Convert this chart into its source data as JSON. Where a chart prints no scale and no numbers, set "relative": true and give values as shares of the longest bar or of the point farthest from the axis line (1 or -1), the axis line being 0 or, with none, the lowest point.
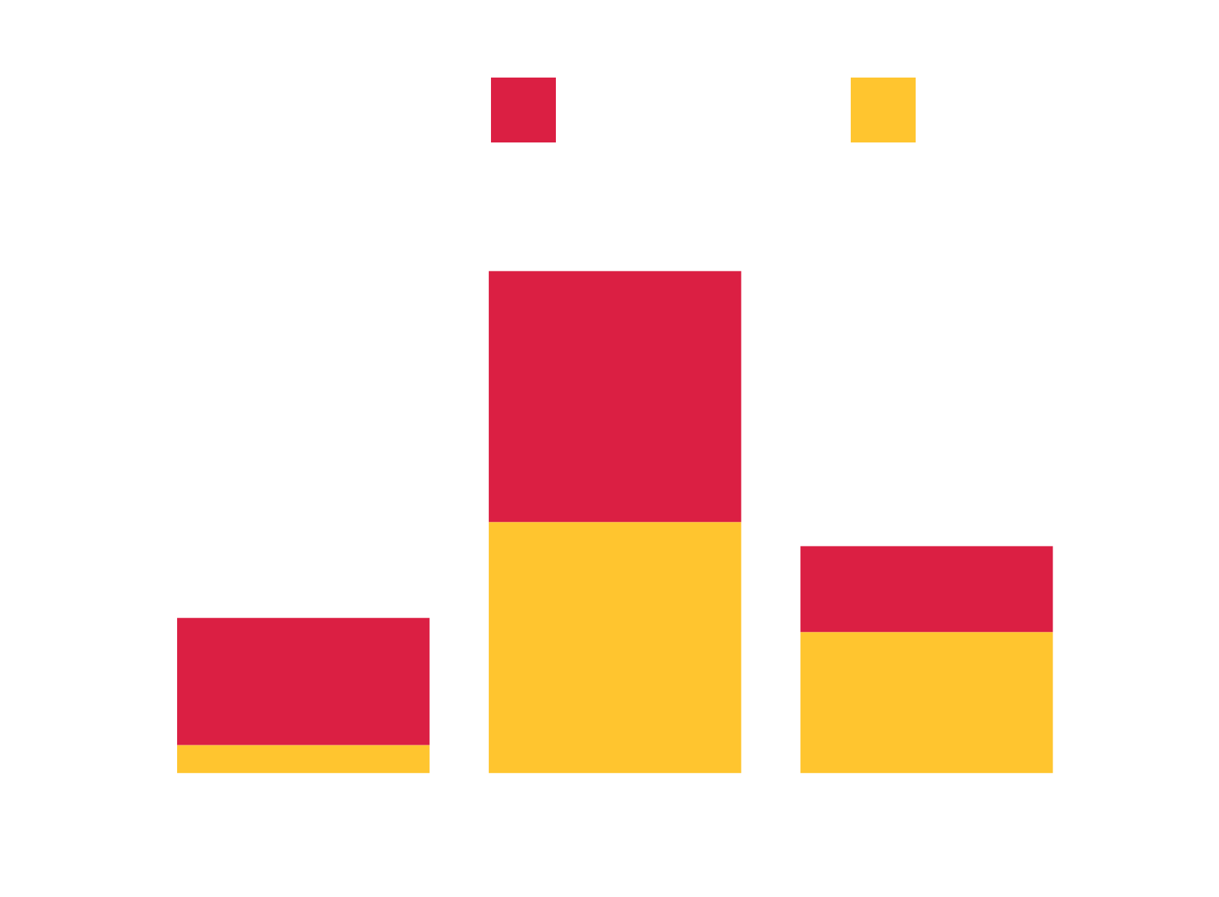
{
  "chart_data": {
    "type": "bar",
    "stacked": true,
    "relative": true,
    "categories": [
      null,
      null,
      null
    ],
    "series": [
      {
        "color": "#ffc52f",
        "values": [
          0.056,
          0.5,
          0.281
        ]
      },
      {
        "color": "#db1f43",
        "values": [
          0.253,
          0.5,
          0.171
        ]
      }
    ],
    "grid": false
  }
}
